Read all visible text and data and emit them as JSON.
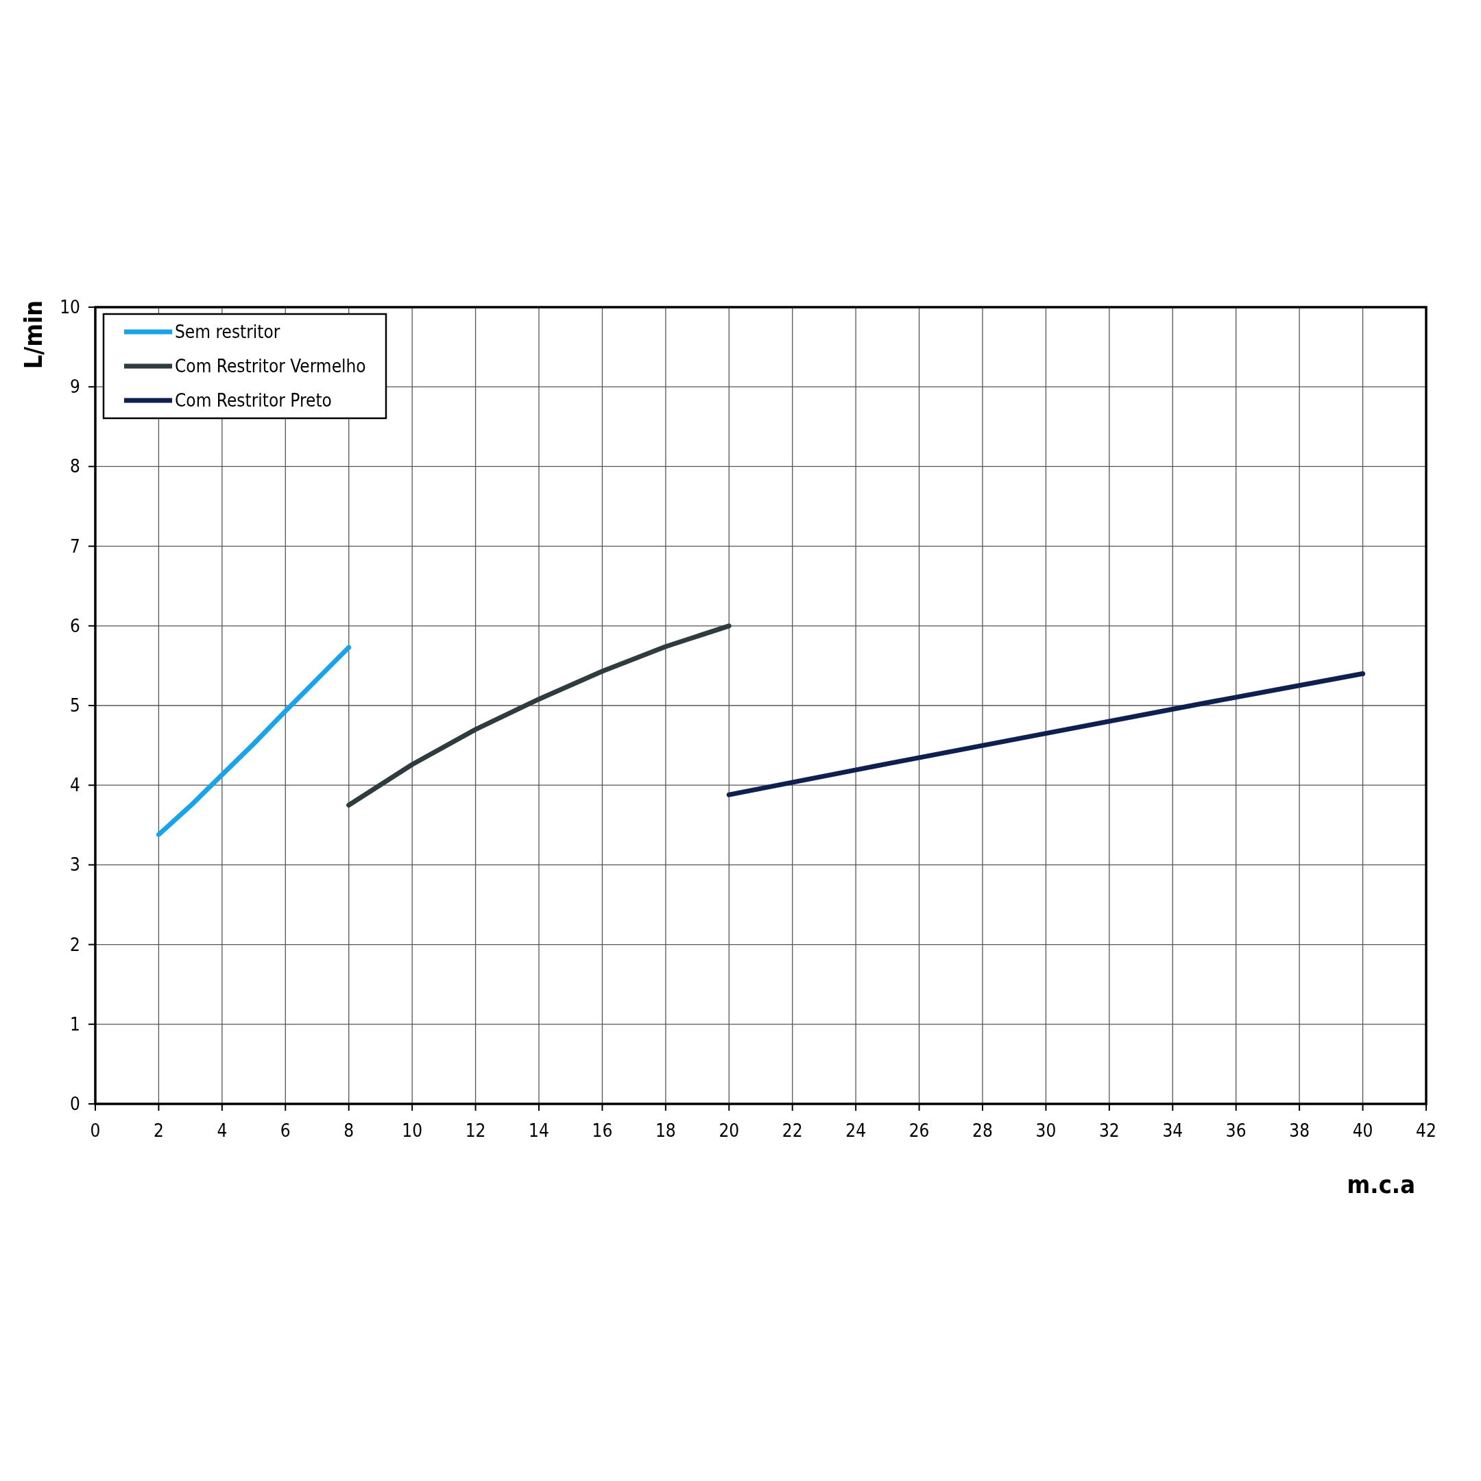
{
  "chart_data": {
    "type": "line",
    "xlabel": "m.c.a",
    "ylabel": "L/min",
    "xlim": [
      0,
      42
    ],
    "xticks": [
      0,
      2,
      4,
      6,
      8,
      10,
      12,
      14,
      16,
      18,
      20,
      22,
      24,
      26,
      28,
      30,
      32,
      34,
      36,
      38,
      40,
      42
    ],
    "ylim": [
      0,
      10
    ],
    "yticks": [
      0,
      1,
      2,
      3,
      4,
      5,
      6,
      7,
      8,
      9,
      10
    ],
    "grid": true,
    "legend": "top left",
    "marker": "none",
    "line_style": "solid",
    "series": [
      {
        "name": "Sem restritor",
        "color": "#1aa3e8",
        "x": [
          2,
          3,
          4,
          5,
          6,
          7,
          8
        ],
        "values": [
          3.38,
          3.74,
          4.13,
          4.52,
          4.93,
          5.33,
          5.73
        ]
      },
      {
        "name": "Com Restritor Vermelho",
        "color": "#2e3b3f",
        "x": [
          8,
          10,
          12,
          14,
          16,
          18,
          20
        ],
        "values": [
          3.75,
          4.26,
          4.7,
          5.08,
          5.43,
          5.74,
          6.0
        ]
      },
      {
        "name": "Com Restritor Preto",
        "color": "#0f2050",
        "x": [
          20,
          25,
          30,
          35,
          40
        ],
        "values": [
          3.88,
          4.27,
          4.65,
          5.03,
          5.4
        ]
      }
    ]
  }
}
